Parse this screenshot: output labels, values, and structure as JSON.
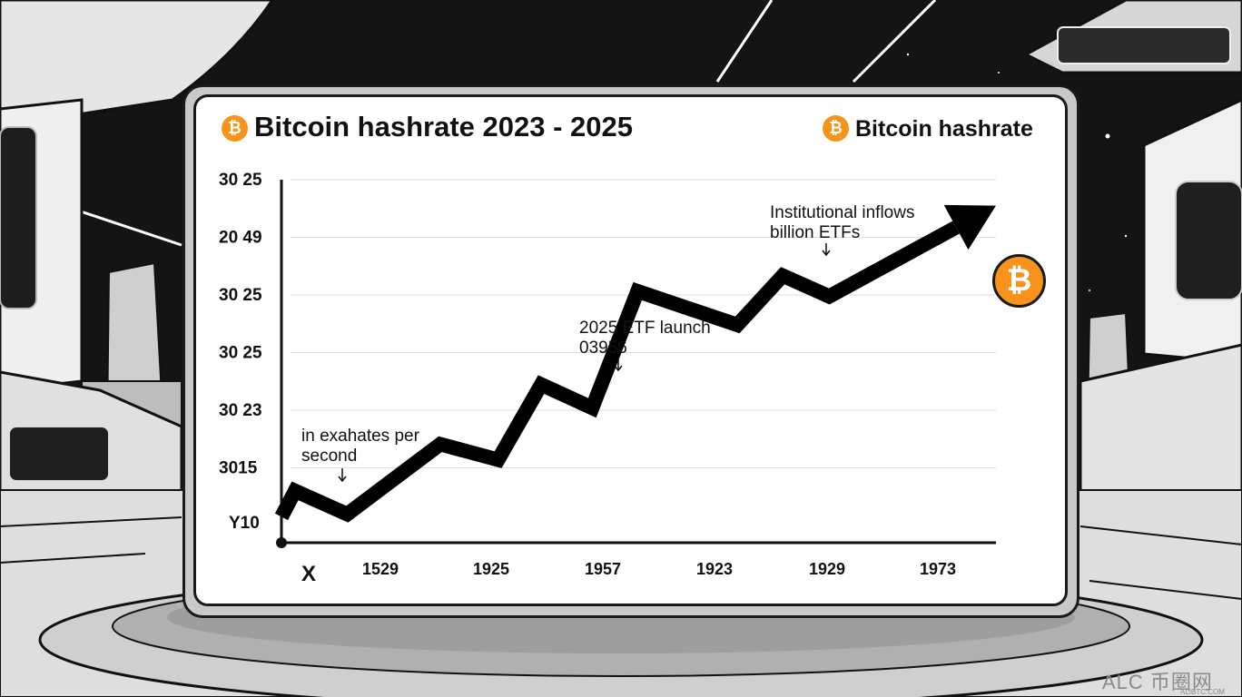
{
  "chart_data": {
    "type": "line",
    "title": "Bitcoin hashrate 2023 - 2025",
    "legend": {
      "label": "Bitcoin hashrate",
      "placement": "top-right",
      "icon": "bitcoin-icon",
      "color": "#f7931a"
    },
    "ylabel": "Y10",
    "xlabel": "X",
    "y_tick_labels": [
      "30 25",
      "20 49",
      "30 25",
      "30 25",
      "30 23",
      "3015"
    ],
    "x_tick_labels": [
      "1529",
      "1925",
      "1957",
      "1923",
      "1929",
      "1973"
    ],
    "x": [
      0.0,
      0.12,
      0.58,
      1.4,
      1.91,
      2.29,
      2.74,
      3.14,
      4.02,
      4.42,
      4.83,
      6.3
    ],
    "values": [
      0.5,
      1.0,
      0.55,
      1.9,
      1.6,
      3.05,
      2.6,
      4.85,
      4.2,
      5.15,
      4.75,
      6.5
    ],
    "xlim": [
      0,
      6.3
    ],
    "ylim": [
      0,
      7
    ],
    "grid": true,
    "line_color": "#000000",
    "arrowhead": true,
    "annotations": [
      {
        "lines": [
          "in exahates per",
          "second"
        ],
        "x": 0.12,
        "y": 1.0
      },
      {
        "lines": [
          "2025 ETF launch",
          "03956"
        ],
        "x": 2.74,
        "y": 2.6
      },
      {
        "lines": [
          "Institutional inflows",
          "billion ETFs"
        ],
        "x": 4.42,
        "y": 5.15
      }
    ],
    "corner_icon": "bitcoin-icon"
  },
  "watermark": {
    "text": "ALC 币圈网",
    "sub": "ALIBTC.COM"
  }
}
